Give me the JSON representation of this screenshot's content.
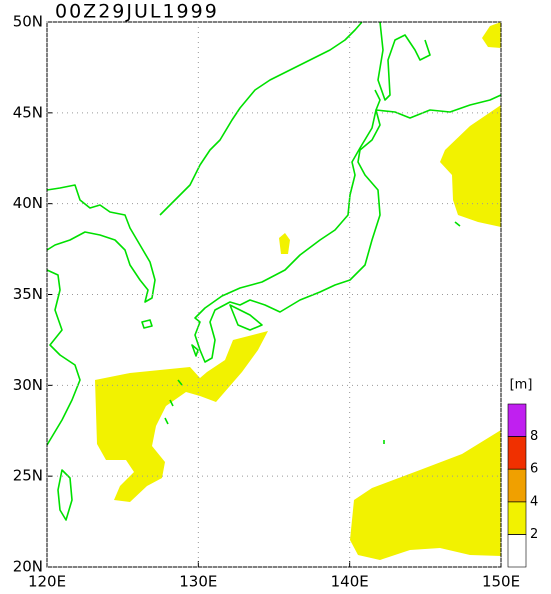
{
  "map": {
    "title": "00Z29JUL1999",
    "xlim": [
      120,
      150
    ],
    "ylim": [
      20,
      50
    ],
    "xticks": [
      {
        "value": 120,
        "label": "120E"
      },
      {
        "value": 130,
        "label": "130E"
      },
      {
        "value": 140,
        "label": "140E"
      },
      {
        "value": 150,
        "label": "150E"
      }
    ],
    "yticks": [
      {
        "value": 20,
        "label": "20N"
      },
      {
        "value": 25,
        "label": "25N"
      },
      {
        "value": 30,
        "label": "30N"
      },
      {
        "value": 35,
        "label": "35N"
      },
      {
        "value": 40,
        "label": "40N"
      },
      {
        "value": 45,
        "label": "45N"
      },
      {
        "value": 50,
        "label": "50N"
      }
    ],
    "grid": true,
    "colorbar": {
      "unit": "[m]",
      "levels": [
        2,
        4,
        6,
        8
      ],
      "colors": [
        "#ffffff",
        "#f2f200",
        "#f0a000",
        "#f03000",
        "#c020f0"
      ]
    }
  }
}
